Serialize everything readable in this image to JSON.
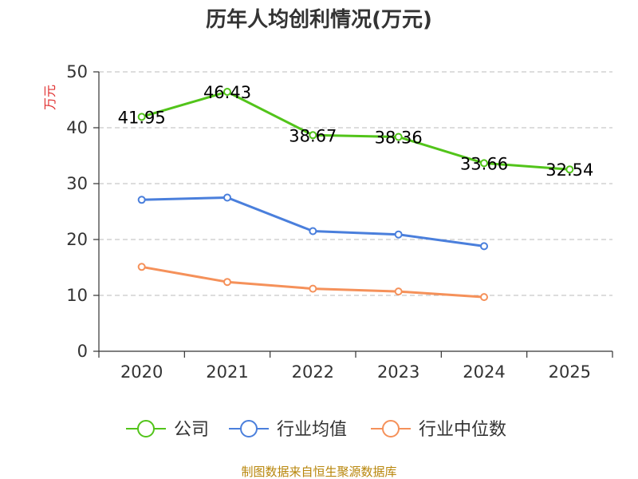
{
  "chart_data": {
    "type": "line",
    "title": "历年人均创利情况(万元)",
    "ylabel": "万元",
    "xlabel": "",
    "ylim": [
      0,
      50
    ],
    "yticks": [
      0,
      10,
      20,
      30,
      40,
      50
    ],
    "categories": [
      "2020",
      "2021",
      "2022",
      "2023",
      "2024",
      "2025"
    ],
    "series": [
      {
        "name": "公司",
        "color": "#52c41a",
        "values": [
          41.95,
          46.43,
          38.67,
          38.36,
          33.66,
          32.54
        ],
        "labels": [
          "41.95",
          "46.43",
          "38.67",
          "38.36",
          "33.66",
          "32.54"
        ]
      },
      {
        "name": "行业均值",
        "color": "#4a7fdc",
        "values": [
          27.1,
          27.5,
          21.5,
          20.9,
          18.8,
          null
        ]
      },
      {
        "name": "行业中位数",
        "color": "#f5915a",
        "values": [
          15.1,
          12.4,
          11.2,
          10.7,
          9.7,
          null
        ]
      }
    ],
    "legend": "bottom",
    "grid": true
  },
  "source": "制图数据来自恒生聚源数据库"
}
